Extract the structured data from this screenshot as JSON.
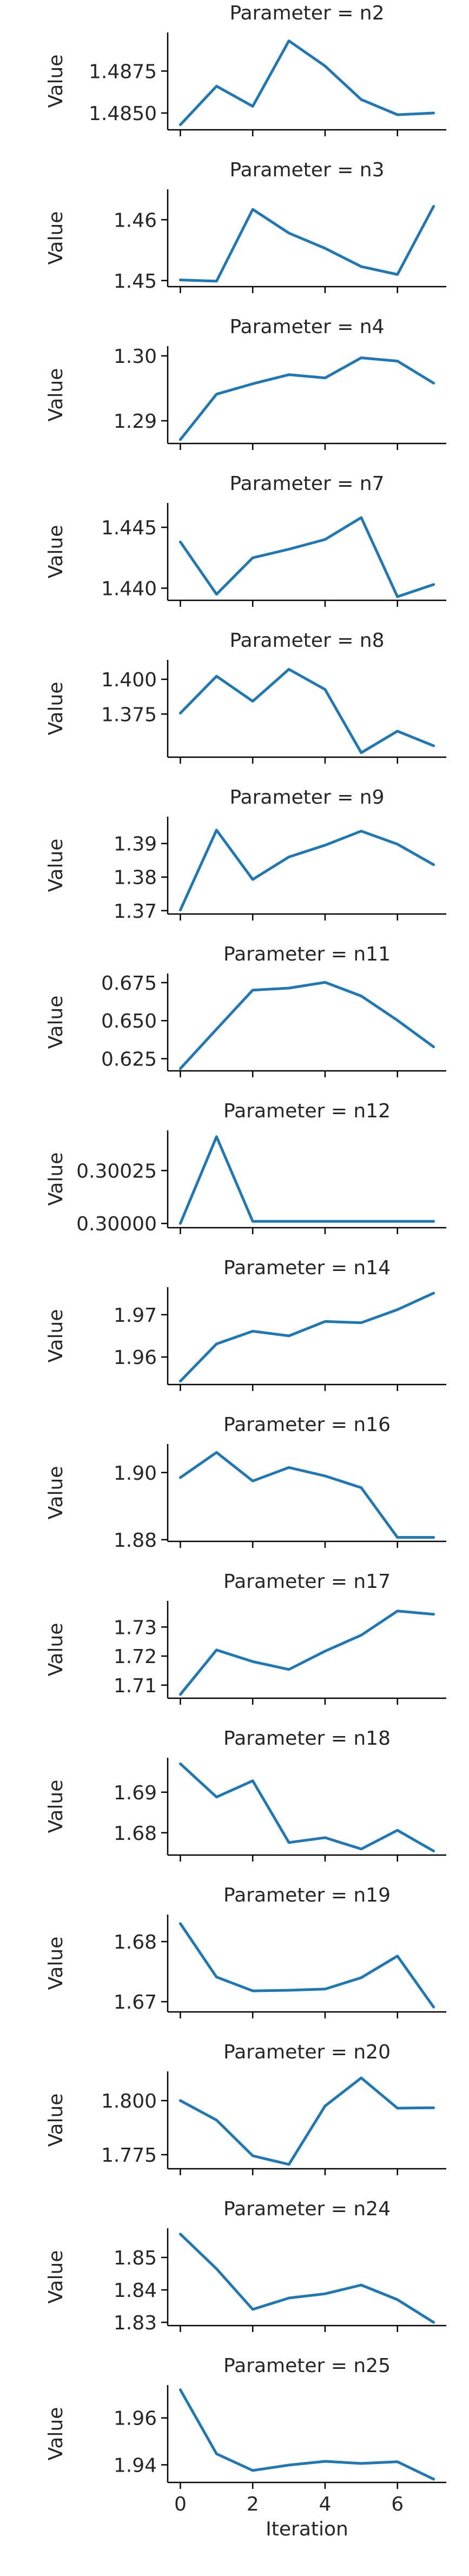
{
  "figure": {
    "line_color": "#1f77b4",
    "x_label": "Iteration",
    "y_label": "Value"
  },
  "chart_data": [
    {
      "type": "line",
      "title": "Parameter = n2",
      "x": [
        0,
        1,
        2,
        3,
        4,
        5,
        6,
        7
      ],
      "values": [
        1.4843,
        1.4866,
        1.4854,
        1.4893,
        1.4878,
        1.4858,
        1.4849,
        1.485
      ],
      "ylim": [
        1.484,
        1.4898
      ],
      "yticks": [
        1.485,
        1.4875
      ],
      "ytick_labels": [
        "1.4850",
        "1.4875"
      ],
      "xlim": [
        -0.35,
        7.35
      ]
    },
    {
      "type": "line",
      "title": "Parameter = n3",
      "x": [
        0,
        1,
        2,
        3,
        4,
        5,
        6,
        7
      ],
      "values": [
        1.4501,
        1.4499,
        1.4617,
        1.4578,
        1.4553,
        1.4523,
        1.451,
        1.4622
      ],
      "ylim": [
        1.449,
        1.465
      ],
      "yticks": [
        1.45,
        1.46
      ],
      "ytick_labels": [
        "1.45",
        "1.46"
      ],
      "xlim": [
        -0.35,
        7.35
      ]
    },
    {
      "type": "line",
      "title": "Parameter = n4",
      "x": [
        0,
        1,
        2,
        3,
        4,
        5,
        6,
        7
      ],
      "values": [
        1.2871,
        1.2941,
        1.2957,
        1.2971,
        1.2966,
        1.2997,
        1.2992,
        1.2958
      ],
      "ylim": [
        1.2865,
        1.3015
      ],
      "yticks": [
        1.29,
        1.3
      ],
      "ytick_labels": [
        "1.29",
        "1.30"
      ],
      "xlim": [
        -0.35,
        7.35
      ]
    },
    {
      "type": "line",
      "title": "Parameter = n7",
      "x": [
        0,
        1,
        2,
        3,
        4,
        5,
        6,
        7
      ],
      "values": [
        1.4438,
        1.4395,
        1.4425,
        1.4432,
        1.444,
        1.4458,
        1.4393,
        1.4403
      ],
      "ylim": [
        1.439,
        1.447
      ],
      "yticks": [
        1.44,
        1.445
      ],
      "ytick_labels": [
        "1.440",
        "1.445"
      ],
      "xlim": [
        -0.35,
        7.35
      ]
    },
    {
      "type": "line",
      "title": "Parameter = n8",
      "x": [
        0,
        1,
        2,
        3,
        4,
        5,
        6,
        7
      ],
      "values": [
        1.3757,
        1.4022,
        1.3842,
        1.4072,
        1.3927,
        1.3472,
        1.3627,
        1.3522
      ],
      "ylim": [
        1.344,
        1.414
      ],
      "yticks": [
        1.375,
        1.4
      ],
      "ytick_labels": [
        "1.375",
        "1.400"
      ],
      "xlim": [
        -0.35,
        7.35
      ]
    },
    {
      "type": "line",
      "title": "Parameter = n9",
      "x": [
        0,
        1,
        2,
        3,
        4,
        5,
        6,
        7
      ],
      "values": [
        1.3702,
        1.394,
        1.3793,
        1.386,
        1.3895,
        1.3937,
        1.3898,
        1.3837
      ],
      "ylim": [
        1.369,
        1.398
      ],
      "yticks": [
        1.37,
        1.38,
        1.39
      ],
      "ytick_labels": [
        "1.37",
        "1.38",
        "1.39"
      ],
      "xlim": [
        -0.35,
        7.35
      ]
    },
    {
      "type": "line",
      "title": "Parameter = n11",
      "x": [
        0,
        1,
        2,
        3,
        4,
        5,
        6,
        7
      ],
      "values": [
        0.6185,
        0.6444,
        0.6701,
        0.6714,
        0.6752,
        0.6662,
        0.6502,
        0.6328
      ],
      "ylim": [
        0.617,
        0.681
      ],
      "yticks": [
        0.625,
        0.65,
        0.675
      ],
      "ytick_labels": [
        "0.625",
        "0.650",
        "0.675"
      ],
      "xlim": [
        -0.35,
        7.35
      ]
    },
    {
      "type": "line",
      "title": "Parameter = n12",
      "x": [
        0,
        1,
        2,
        3,
        4,
        5,
        6,
        7
      ],
      "values": [
        0.3,
        0.30041,
        0.30001,
        0.30001,
        0.30001,
        0.30001,
        0.30001,
        0.30001
      ],
      "ylim": [
        0.29998,
        0.30044
      ],
      "yticks": [
        0.3,
        0.30025
      ],
      "ytick_labels": [
        "0.30000",
        "0.30025"
      ],
      "xlim": [
        -0.35,
        7.35
      ]
    },
    {
      "type": "line",
      "title": "Parameter = n14",
      "x": [
        0,
        1,
        2,
        3,
        4,
        5,
        6,
        7
      ],
      "values": [
        1.9543,
        1.9631,
        1.9661,
        1.965,
        1.9684,
        1.9681,
        1.9712,
        1.9751
      ],
      "ylim": [
        1.9535,
        1.9765
      ],
      "yticks": [
        1.96,
        1.97
      ],
      "ytick_labels": [
        "1.96",
        "1.97"
      ],
      "xlim": [
        -0.35,
        7.35
      ]
    },
    {
      "type": "line",
      "title": "Parameter = n16",
      "x": [
        0,
        1,
        2,
        3,
        4,
        5,
        6,
        7
      ],
      "values": [
        1.8985,
        1.906,
        1.8975,
        1.9015,
        1.899,
        1.8955,
        1.8807,
        1.8807
      ],
      "ylim": [
        1.8795,
        1.9085
      ],
      "yticks": [
        1.88,
        1.9
      ],
      "ytick_labels": [
        "1.88",
        "1.90"
      ],
      "xlim": [
        -0.35,
        7.35
      ]
    },
    {
      "type": "line",
      "title": "Parameter = n17",
      "x": [
        0,
        1,
        2,
        3,
        4,
        5,
        6,
        7
      ],
      "values": [
        1.7068,
        1.7221,
        1.7181,
        1.7154,
        1.7217,
        1.7272,
        1.7355,
        1.7344
      ],
      "ylim": [
        1.7055,
        1.739
      ],
      "yticks": [
        1.71,
        1.72,
        1.73
      ],
      "ytick_labels": [
        "1.71",
        "1.72",
        "1.73"
      ],
      "xlim": [
        -0.35,
        7.35
      ]
    },
    {
      "type": "line",
      "title": "Parameter = n18",
      "x": [
        0,
        1,
        2,
        3,
        4,
        5,
        6,
        7
      ],
      "values": [
        1.697,
        1.6888,
        1.6928,
        1.6776,
        1.6788,
        1.676,
        1.6806,
        1.6755
      ],
      "ylim": [
        1.6745,
        1.6985
      ],
      "yticks": [
        1.68,
        1.69
      ],
      "ytick_labels": [
        "1.68",
        "1.69"
      ],
      "xlim": [
        -0.35,
        7.35
      ]
    },
    {
      "type": "line",
      "title": "Parameter = n19",
      "x": [
        0,
        1,
        2,
        3,
        4,
        5,
        6,
        7
      ],
      "values": [
        1.683,
        1.6741,
        1.6718,
        1.6719,
        1.6721,
        1.674,
        1.6776,
        1.6691
      ],
      "ylim": [
        1.6683,
        1.6845
      ],
      "yticks": [
        1.67,
        1.68
      ],
      "ytick_labels": [
        "1.67",
        "1.68"
      ],
      "xlim": [
        -0.35,
        7.35
      ]
    },
    {
      "type": "line",
      "title": "Parameter = n20",
      "x": [
        0,
        1,
        2,
        3,
        4,
        5,
        6,
        7
      ],
      "values": [
        1.8,
        1.791,
        1.7745,
        1.7705,
        1.7975,
        1.8105,
        1.7965,
        1.7967
      ],
      "ylim": [
        1.7685,
        1.8135
      ],
      "yticks": [
        1.775,
        1.8
      ],
      "ytick_labels": [
        "1.775",
        "1.800"
      ],
      "xlim": [
        -0.35,
        7.35
      ]
    },
    {
      "type": "line",
      "title": "Parameter = n24",
      "x": [
        0,
        1,
        2,
        3,
        4,
        5,
        6,
        7
      ],
      "values": [
        1.8572,
        1.8465,
        1.834,
        1.8375,
        1.8388,
        1.8415,
        1.837,
        1.83
      ],
      "ylim": [
        1.829,
        1.859
      ],
      "yticks": [
        1.83,
        1.84,
        1.85
      ],
      "ytick_labels": [
        "1.83",
        "1.84",
        "1.85"
      ],
      "xlim": [
        -0.35,
        7.35
      ]
    },
    {
      "type": "line",
      "title": "Parameter = n25",
      "x": [
        0,
        1,
        2,
        3,
        4,
        5,
        6,
        7
      ],
      "values": [
        1.972,
        1.9447,
        1.9376,
        1.9399,
        1.9415,
        1.9406,
        1.9413,
        1.9339
      ],
      "ylim": [
        1.9325,
        1.974
      ],
      "yticks": [
        1.94,
        1.96
      ],
      "ytick_labels": [
        "1.94",
        "1.96"
      ],
      "xlim": [
        -0.35,
        7.35
      ],
      "xticks": [
        0,
        2,
        4,
        6
      ],
      "xtick_labels": [
        "0",
        "2",
        "4",
        "6"
      ]
    }
  ]
}
